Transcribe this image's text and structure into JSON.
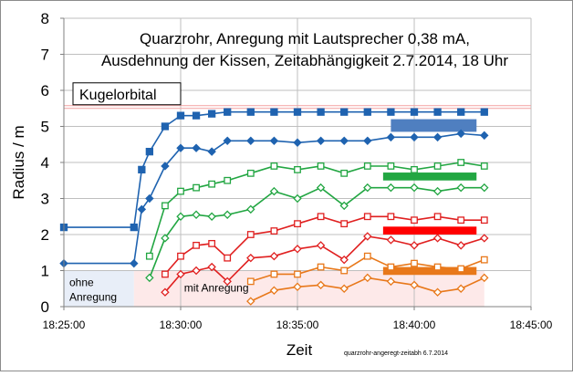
{
  "chart_data": {
    "type": "line",
    "title_lines": [
      "Quarzrohr, Anregung mit Lautsprecher 0,38 mA,",
      "Ausdehnung der Kissen, Zeitabhängigkeit 2.7.2014, 18 Uhr"
    ],
    "xlabel": "Zeit",
    "ylabel": "Radius / m",
    "xlim": [
      "18:25:00",
      "18:45:00"
    ],
    "ylim": [
      0,
      8
    ],
    "x_ticks": [
      "18:25:00",
      "18:30:00",
      "18:35:00",
      "18:40:00",
      "18:45:00"
    ],
    "y_ticks": [
      "0",
      "1",
      "2",
      "3",
      "4",
      "5",
      "6",
      "7",
      "8"
    ],
    "grid": true,
    "reference_line": {
      "label": "Kugelorbital",
      "y": 5.55,
      "color": "#f4a0a0"
    },
    "regions": [
      {
        "label_lines": [
          "ohne",
          "Anregung"
        ],
        "x_start": "18:25:00",
        "x_end": "18:28:00",
        "y_start": 0,
        "y_end": 1,
        "color": "#e8eef8"
      },
      {
        "label_lines": [
          "mit  Anregung"
        ],
        "x_start": "18:28:00",
        "x_end": "18:43:00",
        "y_start": 0,
        "y_end": 1,
        "color": "#fde9e9"
      }
    ],
    "series": [
      {
        "color": "#1f63b0",
        "marker": "square-filled",
        "points": [
          [
            "18:25:00",
            2.2
          ],
          [
            "18:28:00",
            2.2
          ],
          [
            "18:28:20",
            3.8
          ],
          [
            "18:28:40",
            4.3
          ],
          [
            "18:29:20",
            5.0
          ],
          [
            "18:30:00",
            5.3
          ],
          [
            "18:30:40",
            5.3
          ],
          [
            "18:31:20",
            5.35
          ],
          [
            "18:32:00",
            5.4
          ],
          [
            "18:33:00",
            5.4
          ],
          [
            "18:34:00",
            5.4
          ],
          [
            "18:35:00",
            5.4
          ],
          [
            "18:36:00",
            5.4
          ],
          [
            "18:37:00",
            5.4
          ],
          [
            "18:38:00",
            5.4
          ],
          [
            "18:39:00",
            5.4
          ],
          [
            "18:40:00",
            5.4
          ],
          [
            "18:41:00",
            5.4
          ],
          [
            "18:42:00",
            5.4
          ],
          [
            "18:43:00",
            5.4
          ]
        ]
      },
      {
        "color": "#1f63b0",
        "marker": "diamond-filled",
        "points": [
          [
            "18:25:00",
            1.2
          ],
          [
            "18:28:00",
            1.2
          ],
          [
            "18:28:20",
            2.7
          ],
          [
            "18:28:40",
            3.0
          ],
          [
            "18:29:20",
            3.9
          ],
          [
            "18:30:00",
            4.4
          ],
          [
            "18:30:40",
            4.4
          ],
          [
            "18:31:20",
            4.3
          ],
          [
            "18:32:00",
            4.6
          ],
          [
            "18:33:00",
            4.6
          ],
          [
            "18:34:00",
            4.6
          ],
          [
            "18:35:00",
            4.55
          ],
          [
            "18:36:00",
            4.6
          ],
          [
            "18:37:00",
            4.6
          ],
          [
            "18:38:00",
            4.6
          ],
          [
            "18:39:00",
            4.7
          ],
          [
            "18:40:00",
            4.7
          ],
          [
            "18:41:00",
            4.7
          ],
          [
            "18:42:00",
            4.8
          ],
          [
            "18:43:00",
            4.75
          ]
        ]
      },
      {
        "color": "#22a642",
        "marker": "square-open",
        "points": [
          [
            "18:28:40",
            1.4
          ],
          [
            "18:29:20",
            2.8
          ],
          [
            "18:30:00",
            3.2
          ],
          [
            "18:30:40",
            3.3
          ],
          [
            "18:31:20",
            3.4
          ],
          [
            "18:32:00",
            3.5
          ],
          [
            "18:33:00",
            3.7
          ],
          [
            "18:34:00",
            3.9
          ],
          [
            "18:35:00",
            3.8
          ],
          [
            "18:36:00",
            3.9
          ],
          [
            "18:37:00",
            3.7
          ],
          [
            "18:38:00",
            3.9
          ],
          [
            "18:39:00",
            3.9
          ],
          [
            "18:40:00",
            3.8
          ],
          [
            "18:41:00",
            3.9
          ],
          [
            "18:42:00",
            4.0
          ],
          [
            "18:43:00",
            3.9
          ]
        ]
      },
      {
        "color": "#22a642",
        "marker": "diamond-open",
        "points": [
          [
            "18:28:40",
            0.8
          ],
          [
            "18:29:20",
            1.9
          ],
          [
            "18:30:00",
            2.5
          ],
          [
            "18:30:40",
            2.55
          ],
          [
            "18:31:20",
            2.5
          ],
          [
            "18:32:00",
            2.55
          ],
          [
            "18:33:00",
            2.7
          ],
          [
            "18:34:00",
            3.2
          ],
          [
            "18:35:00",
            3.0
          ],
          [
            "18:36:00",
            3.3
          ],
          [
            "18:37:00",
            2.8
          ],
          [
            "18:38:00",
            3.3
          ],
          [
            "18:39:00",
            3.3
          ],
          [
            "18:40:00",
            3.3
          ],
          [
            "18:41:00",
            3.2
          ],
          [
            "18:42:00",
            3.3
          ],
          [
            "18:43:00",
            3.3
          ]
        ]
      },
      {
        "color": "#e02020",
        "marker": "square-open",
        "points": [
          [
            "18:29:20",
            0.9
          ],
          [
            "18:30:00",
            1.4
          ],
          [
            "18:30:40",
            1.7
          ],
          [
            "18:31:20",
            1.75
          ],
          [
            "18:32:00",
            1.35
          ],
          [
            "18:33:00",
            2.0
          ],
          [
            "18:34:00",
            2.1
          ],
          [
            "18:35:00",
            2.3
          ],
          [
            "18:36:00",
            2.5
          ],
          [
            "18:37:00",
            2.3
          ],
          [
            "18:38:00",
            2.5
          ],
          [
            "18:39:00",
            2.5
          ],
          [
            "18:40:00",
            2.4
          ],
          [
            "18:41:00",
            2.5
          ],
          [
            "18:42:00",
            2.4
          ],
          [
            "18:43:00",
            2.4
          ]
        ]
      },
      {
        "color": "#e02020",
        "marker": "diamond-open",
        "points": [
          [
            "18:29:20",
            0.4
          ],
          [
            "18:30:00",
            0.9
          ],
          [
            "18:30:40",
            1.0
          ],
          [
            "18:31:20",
            1.1
          ],
          [
            "18:32:00",
            0.7
          ],
          [
            "18:33:00",
            1.35
          ],
          [
            "18:34:00",
            1.4
          ],
          [
            "18:35:00",
            1.6
          ],
          [
            "18:36:00",
            1.7
          ],
          [
            "18:37:00",
            1.3
          ],
          [
            "18:38:00",
            1.95
          ],
          [
            "18:39:00",
            1.85
          ],
          [
            "18:40:00",
            1.7
          ],
          [
            "18:41:00",
            1.9
          ],
          [
            "18:42:00",
            1.7
          ],
          [
            "18:43:00",
            1.9
          ]
        ]
      },
      {
        "color": "#e8781a",
        "marker": "square-open",
        "points": [
          [
            "18:33:00",
            0.7
          ],
          [
            "18:34:00",
            0.9
          ],
          [
            "18:35:00",
            0.9
          ],
          [
            "18:36:00",
            1.1
          ],
          [
            "18:37:00",
            1.0
          ],
          [
            "18:38:00",
            1.4
          ],
          [
            "18:39:00",
            1.1
          ],
          [
            "18:40:00",
            1.2
          ],
          [
            "18:41:00",
            1.1
          ],
          [
            "18:42:00",
            1.05
          ],
          [
            "18:43:00",
            1.3
          ]
        ]
      },
      {
        "color": "#e8781a",
        "marker": "diamond-open",
        "points": [
          [
            "18:33:00",
            0.15
          ],
          [
            "18:34:00",
            0.45
          ],
          [
            "18:35:00",
            0.55
          ],
          [
            "18:36:00",
            0.6
          ],
          [
            "18:37:00",
            0.5
          ],
          [
            "18:38:00",
            0.8
          ],
          [
            "18:39:00",
            0.7
          ],
          [
            "18:40:00",
            0.6
          ],
          [
            "18:41:00",
            0.4
          ],
          [
            "18:42:00",
            0.5
          ],
          [
            "18:43:00",
            0.8
          ]
        ]
      }
    ],
    "bands": [
      {
        "color": "#4f7fc0",
        "x_start": "18:39:00",
        "x_end": "18:42:40",
        "y_low": 4.85,
        "y_high": 5.2
      },
      {
        "color": "#22a642",
        "x_start": "18:38:40",
        "x_end": "18:42:40",
        "y_low": 3.5,
        "y_high": 3.72
      },
      {
        "color": "#ff0000",
        "x_start": "18:38:40",
        "x_end": "18:42:40",
        "y_low": 2.0,
        "y_high": 2.22
      },
      {
        "color": "#e8781a",
        "x_start": "18:38:40",
        "x_end": "18:42:40",
        "y_low": 0.88,
        "y_high": 1.1
      }
    ],
    "footnote": "quarzrohr-angeregt-zeitabh 6.7.2014"
  }
}
